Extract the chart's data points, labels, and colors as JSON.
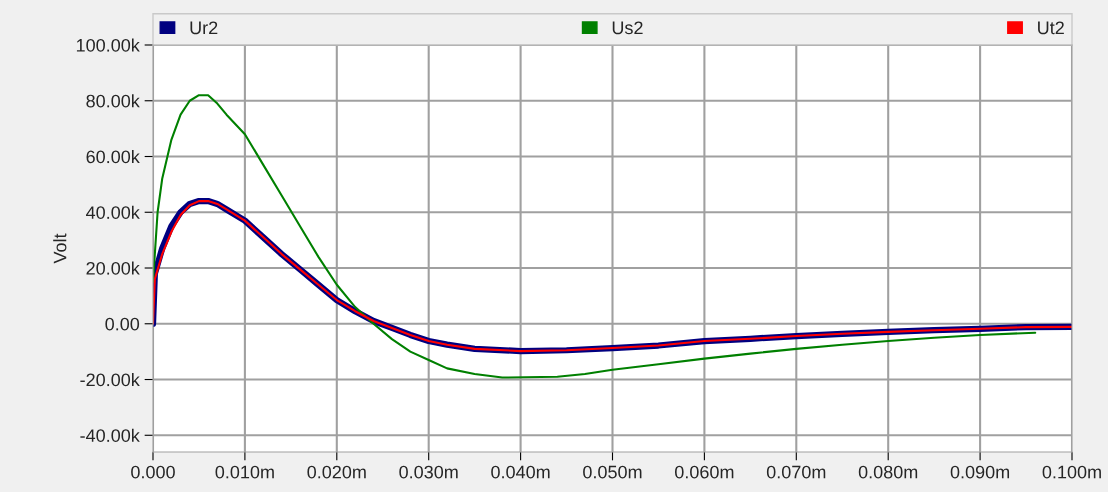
{
  "chart_data": {
    "type": "line",
    "ylabel": "Volt",
    "xlim": [
      0,
      0.1
    ],
    "ylim": [
      -46000,
      100000
    ],
    "xticks": [
      {
        "value": 0,
        "label": "0.000"
      },
      {
        "value": 0.01,
        "label": "0.010m"
      },
      {
        "value": 0.02,
        "label": "0.020m"
      },
      {
        "value": 0.03,
        "label": "0.030m"
      },
      {
        "value": 0.04,
        "label": "0.040m"
      },
      {
        "value": 0.05,
        "label": "0.050m"
      },
      {
        "value": 0.06,
        "label": "0.060m"
      },
      {
        "value": 0.07,
        "label": "0.070m"
      },
      {
        "value": 0.08,
        "label": "0.080m"
      },
      {
        "value": 0.09,
        "label": "0.090m"
      },
      {
        "value": 0.1,
        "label": "0.100m"
      }
    ],
    "yticks": [
      {
        "value": -40000,
        "label": "-40.00k"
      },
      {
        "value": -20000,
        "label": "-20.00k"
      },
      {
        "value": 0,
        "label": "0.00"
      },
      {
        "value": 20000,
        "label": "20.00k"
      },
      {
        "value": 40000,
        "label": "40.00k"
      },
      {
        "value": 60000,
        "label": "60.00k"
      },
      {
        "value": 80000,
        "label": "80.00k"
      },
      {
        "value": 100000,
        "label": "100.00k"
      }
    ],
    "grid": true,
    "legend": "top",
    "series": [
      {
        "name": "Ur2",
        "color": "#000080",
        "x": [
          0,
          0.0002,
          0.001,
          0.002,
          0.003,
          0.004,
          0.005,
          0.006,
          0.007,
          0.008,
          0.01,
          0.012,
          0.014,
          0.016,
          0.018,
          0.02,
          0.022,
          0.024,
          0.026,
          0.028,
          0.03,
          0.032,
          0.035,
          0.04,
          0.045,
          0.05,
          0.055,
          0.06,
          0.065,
          0.07,
          0.075,
          0.08,
          0.085,
          0.09,
          0.095,
          0.1
        ],
        "values": [
          0,
          18000,
          27000,
          35000,
          40000,
          43000,
          44000,
          44000,
          43000,
          41000,
          37000,
          31000,
          25000,
          19500,
          14000,
          8500,
          4500,
          1000,
          -1500,
          -4000,
          -6200,
          -7500,
          -9000,
          -9800,
          -9500,
          -8700,
          -7800,
          -6200,
          -5400,
          -4400,
          -3600,
          -2900,
          -2300,
          -1800,
          -1200,
          -1100
        ]
      },
      {
        "name": "Us2",
        "color": "#008000",
        "x": [
          0,
          0.0005,
          0.001,
          0.002,
          0.003,
          0.004,
          0.005,
          0.006,
          0.007,
          0.008,
          0.01,
          0.012,
          0.014,
          0.016,
          0.018,
          0.02,
          0.022,
          0.024,
          0.026,
          0.028,
          0.03,
          0.032,
          0.035,
          0.038,
          0.044,
          0.047,
          0.05,
          0.055,
          0.06,
          0.065,
          0.07,
          0.075,
          0.08,
          0.085,
          0.09,
          0.096
        ],
        "values": [
          15000,
          40000,
          52000,
          66000,
          75000,
          80000,
          82000,
          82000,
          79000,
          75000,
          68000,
          57000,
          46000,
          35000,
          24000,
          14000,
          6000,
          0,
          -5500,
          -10000,
          -13000,
          -16000,
          -18000,
          -19300,
          -19000,
          -18000,
          -16500,
          -14500,
          -12500,
          -10700,
          -9000,
          -7500,
          -6200,
          -5000,
          -4000,
          -3200
        ]
      },
      {
        "name": "Ut2",
        "color": "#ff0000",
        "x": [
          0,
          0.0002,
          0.001,
          0.002,
          0.003,
          0.004,
          0.005,
          0.006,
          0.007,
          0.008,
          0.01,
          0.012,
          0.014,
          0.016,
          0.018,
          0.02,
          0.022,
          0.024,
          0.026,
          0.028,
          0.03,
          0.032,
          0.035,
          0.04,
          0.045,
          0.05,
          0.055,
          0.06,
          0.065,
          0.07,
          0.075,
          0.08,
          0.085,
          0.09,
          0.095,
          0.1
        ],
        "values": [
          0,
          16000,
          25000,
          33000,
          39000,
          42500,
          44000,
          44000,
          43000,
          41000,
          37000,
          31000,
          25000,
          19500,
          14000,
          8500,
          4500,
          1000,
          -1500,
          -4000,
          -6200,
          -7500,
          -9000,
          -9800,
          -9500,
          -8700,
          -7800,
          -6200,
          -5400,
          -4400,
          -3600,
          -2900,
          -2300,
          -1800,
          -1200,
          -1100
        ]
      }
    ]
  }
}
